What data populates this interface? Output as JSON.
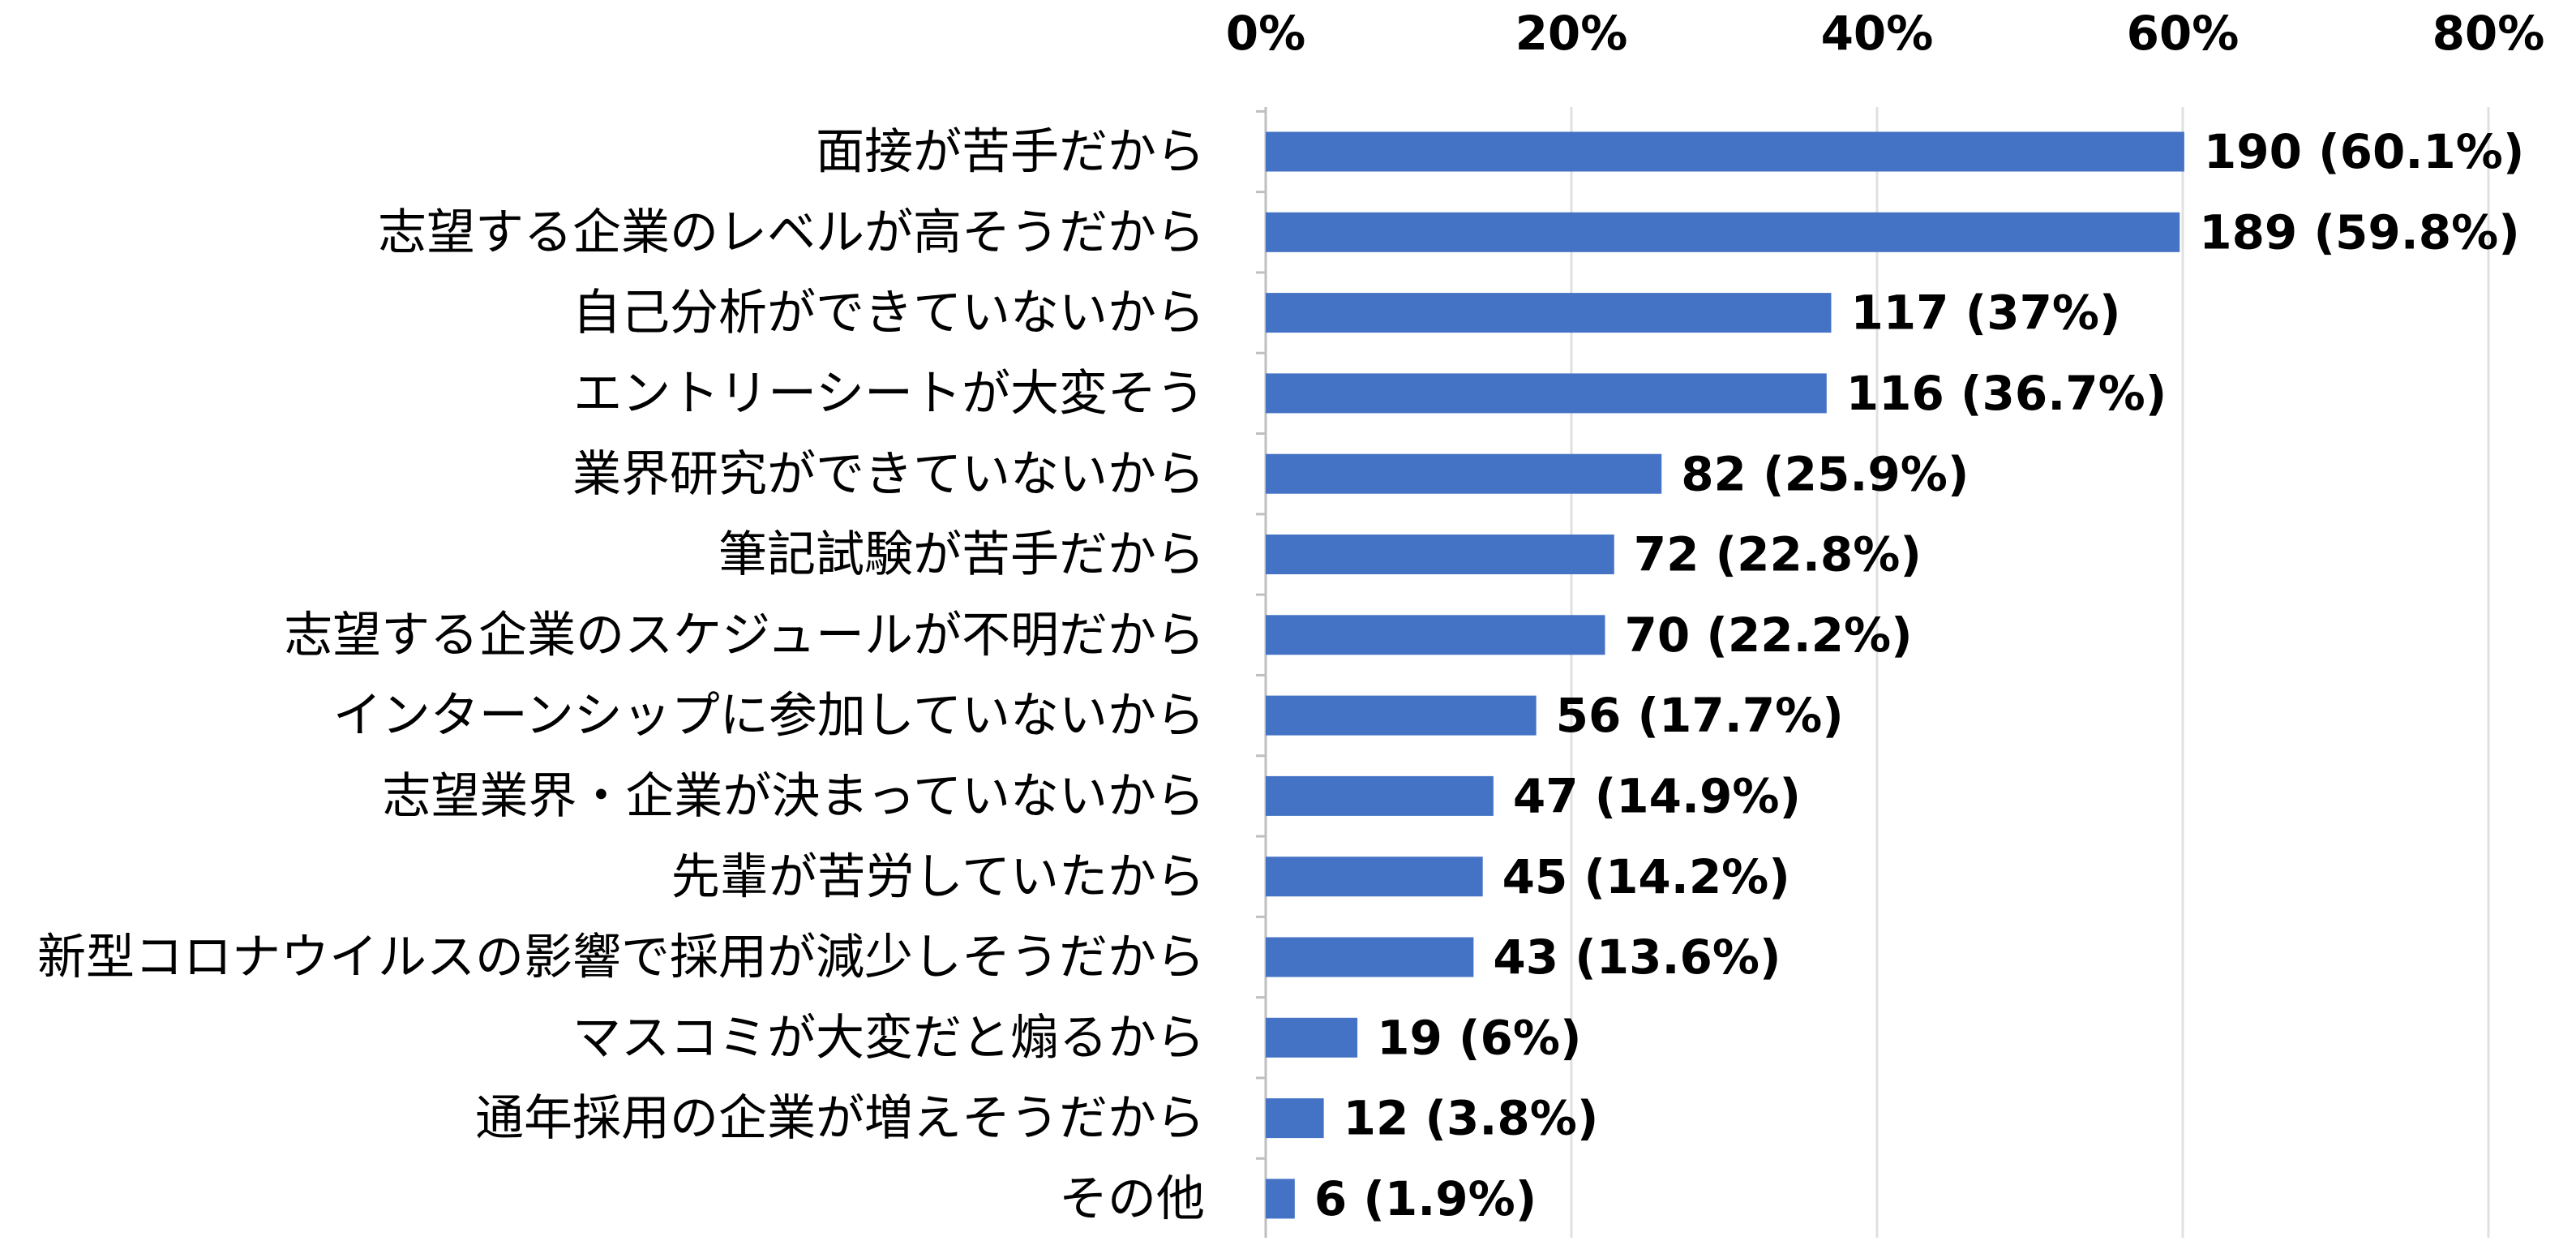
{
  "chart_data": {
    "type": "bar",
    "orientation": "horizontal",
    "categories": [
      "面接が苦手だから",
      "志望する企業のレベルが高そうだから",
      "自己分析ができていないから",
      "エントリーシートが大変そう",
      "業界研究ができていないから",
      "筆記試験が苦手だから",
      "志望する企業のスケジュールが不明だから",
      "インターンシップに参加していないから",
      "志望業界・企業が決まっていないから",
      "先輩が苦労していたから",
      "新型コロナウイルスの影響で採用が減少しそうだから",
      "マスコミが大変だと煽るから",
      "通年採用の企業が増えそうだから",
      "その他"
    ],
    "values": [
      60.1,
      59.8,
      37,
      36.7,
      25.9,
      22.8,
      22.2,
      17.7,
      14.9,
      14.2,
      13.6,
      6,
      3.8,
      1.9
    ],
    "value_labels": [
      "190 (60.1%)",
      "189 (59.8%)",
      "117 (37%)",
      "116 (36.7%)",
      "82 (25.9%)",
      "72 (22.8%)",
      "70 (22.2%)",
      "56 (17.7%)",
      "47 (14.9%)",
      "45 (14.2%)",
      "43 (13.6%)",
      "19 (6%)",
      "12 (3.8%)",
      "6 (1.9%)"
    ],
    "color": "#4472c4",
    "xlim": [
      0,
      80
    ],
    "xticks": [
      {
        "value": 0,
        "label": "0%"
      },
      {
        "value": 20,
        "label": "20%"
      },
      {
        "value": 40,
        "label": "40%"
      },
      {
        "value": 60,
        "label": "60%"
      },
      {
        "value": 80,
        "label": "80%"
      }
    ],
    "grid": true
  }
}
